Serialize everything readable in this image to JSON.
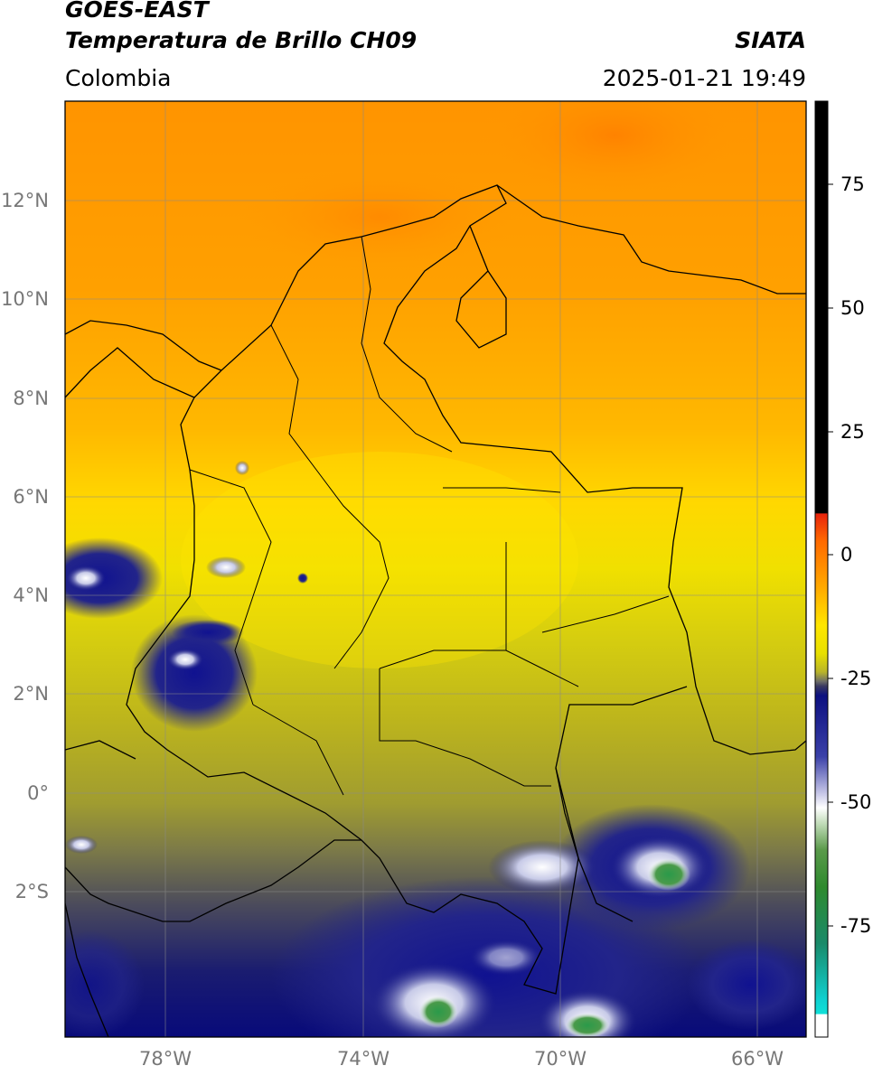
{
  "header": {
    "satellite": "GOES-EAST",
    "product": "Temperatura de Brillo CH09",
    "org": "SIATA",
    "region": "Colombia",
    "datetime": "2025-01-21 19:49"
  },
  "map": {
    "lat_labels": [
      "12°N",
      "10°N",
      "8°N",
      "6°N",
      "4°N",
      "2°N",
      "0°",
      "2°S"
    ],
    "lon_labels": [
      "78°W",
      "74°W",
      "70°W",
      "66°W"
    ]
  },
  "colorbar": {
    "labels": [
      "75",
      "50",
      "25",
      "0",
      "-25",
      "-50",
      "-75"
    ],
    "colors": {
      "warm_black": "#000000",
      "red": "#e8240c",
      "orange": "#ff9a00",
      "yellow": "#ffe600",
      "olive": "#b8b42a",
      "gray": "#6d6d68",
      "navy": "#0c1080",
      "white": "#ffffff",
      "green": "#2e8a2e",
      "cyan": "#10e0d8"
    }
  }
}
